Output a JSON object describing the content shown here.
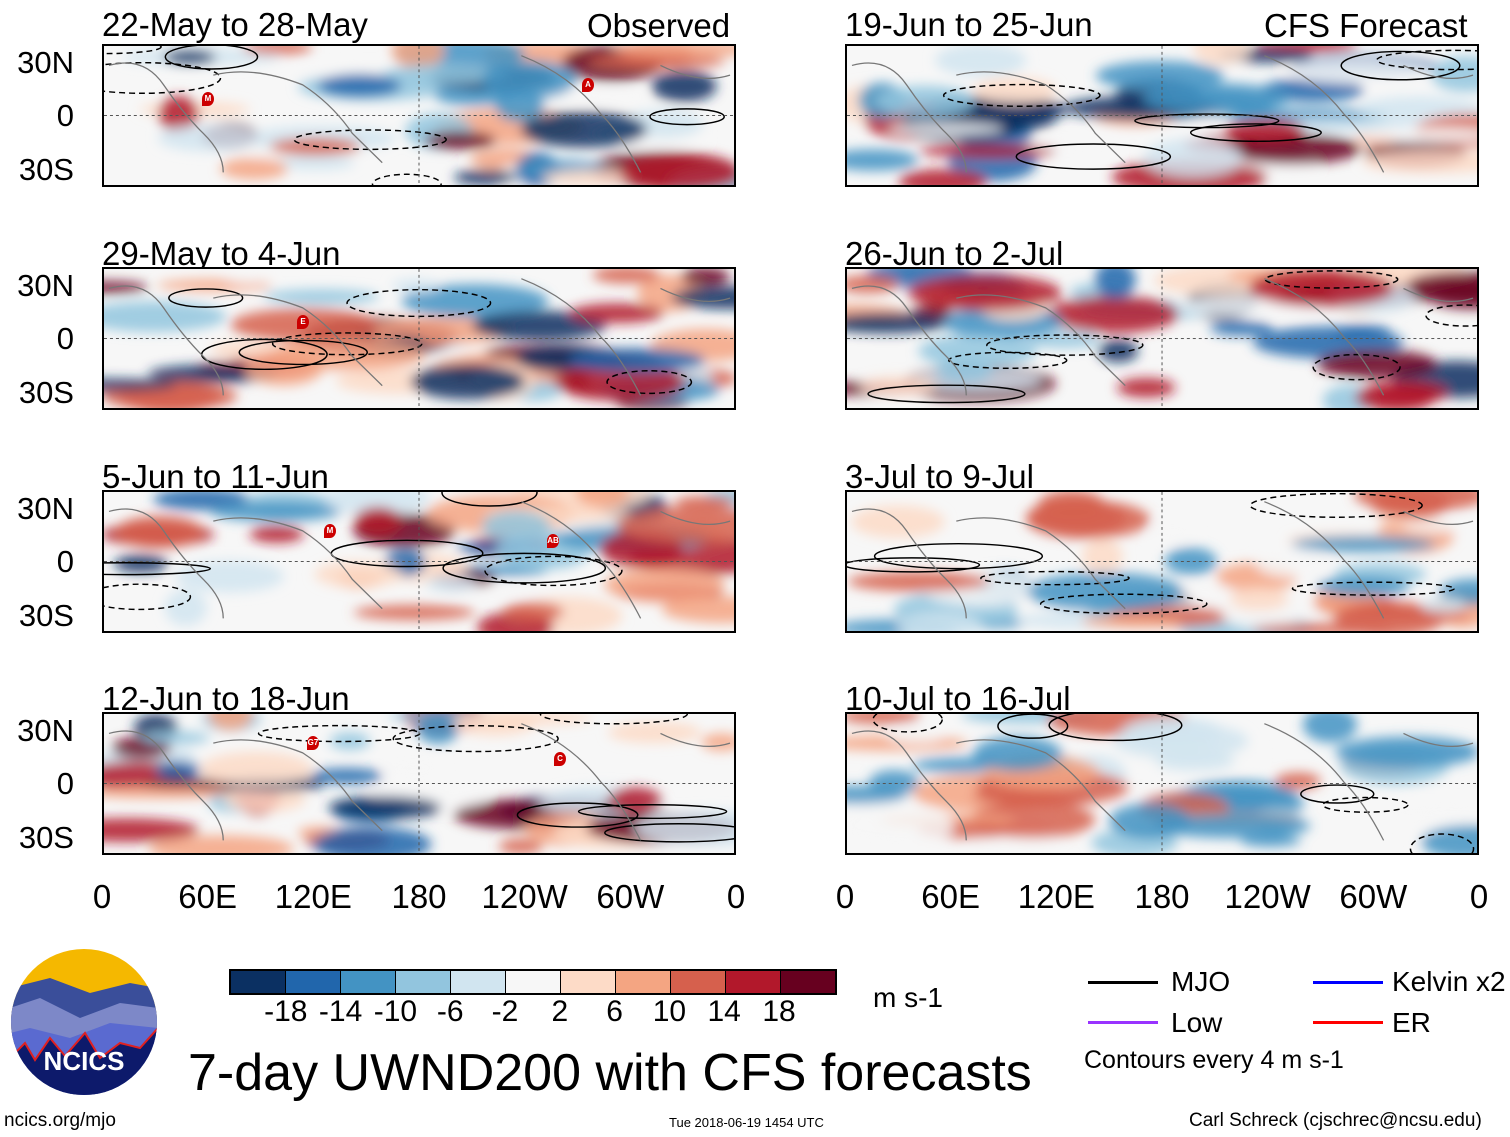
{
  "columns": {
    "left_label": "Observed",
    "right_label": "CFS Forecast"
  },
  "panels_left": [
    {
      "title": "22-May to 28-May"
    },
    {
      "title": "29-May to 4-Jun"
    },
    {
      "title": "5-Jun to 11-Jun"
    },
    {
      "title": "12-Jun to 18-Jun"
    }
  ],
  "panels_right": [
    {
      "title": "19-Jun to 25-Jun"
    },
    {
      "title": "26-Jun to 2-Jul"
    },
    {
      "title": "3-Jul to 9-Jul"
    },
    {
      "title": "10-Jul to 16-Jul"
    }
  ],
  "lat_labels": [
    "30N",
    "0",
    "30S"
  ],
  "lon_labels": [
    "0",
    "60E",
    "120E",
    "180",
    "120W",
    "60W",
    "0"
  ],
  "markers": [
    "M",
    "A",
    "E",
    "M",
    "AB",
    "G7",
    "C"
  ],
  "colorbar": {
    "colors": [
      "#0b3062",
      "#2166ac",
      "#4393c3",
      "#92c5de",
      "#d1e5f0",
      "#f7f7f7",
      "#fddbc7",
      "#f4a582",
      "#d6604d",
      "#b2182b",
      "#67001f"
    ],
    "labels": [
      "-18",
      "-14",
      "-10",
      "-6",
      "-2",
      "2",
      "6",
      "10",
      "14",
      "18"
    ],
    "units": "m s-1"
  },
  "title": "7-day UWND200 with CFS forecasts",
  "legend": {
    "items": [
      {
        "label": "MJO",
        "color": "#000000"
      },
      {
        "label": "Kelvin x2",
        "color": "#0000ff"
      },
      {
        "label": "Low",
        "color": "#9933ff"
      },
      {
        "label": "ER",
        "color": "#ff0000"
      }
    ],
    "note": "Contours every 4 m s-1"
  },
  "logo_text": "NCICS",
  "footer": {
    "url": "ncics.org/mjo",
    "timestamp": "Tue 2018-06-19 1454 UTC",
    "credit": "Carl Schreck (cjschrec@ncsu.edu)"
  }
}
